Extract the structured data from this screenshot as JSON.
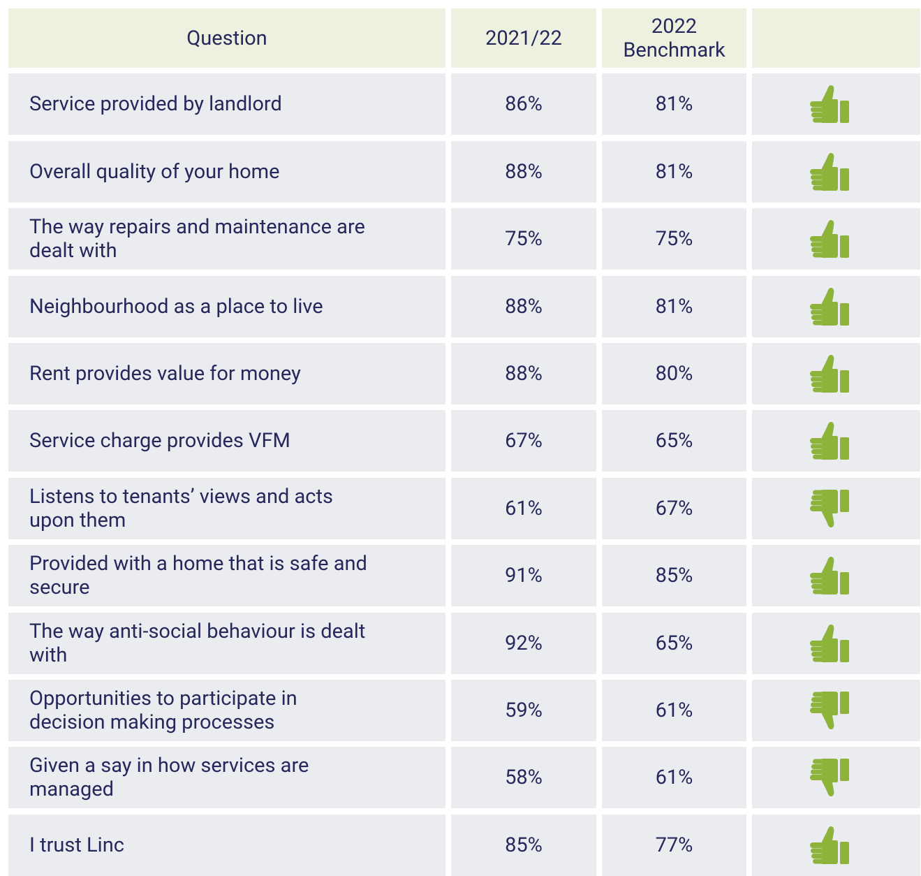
{
  "table": {
    "header": [
      "Question",
      "2021/22",
      "2022 Benchmark"
    ],
    "rows": [
      {
        "question": "Service provided by landlord",
        "result": "86%",
        "benchmark": "81%",
        "thumb": "up"
      },
      {
        "question": "Overall quality of your home",
        "result": "88%",
        "benchmark": "81%",
        "thumb": "up"
      },
      {
        "question": "The way repairs and maintenance are dealt with",
        "result": "75%",
        "benchmark": "75%",
        "thumb": "up"
      },
      {
        "question": "Neighbourhood as a place to live",
        "result": "88%",
        "benchmark": "81%",
        "thumb": "up"
      },
      {
        "question": "Rent provides value for money",
        "result": "88%",
        "benchmark": "80%",
        "thumb": "up"
      },
      {
        "question": "Service charge provides VFM",
        "result": "67%",
        "benchmark": "65%",
        "thumb": "up"
      },
      {
        "question": "Listens to tenants’ views and acts upon them",
        "result": "61%",
        "benchmark": "67%",
        "thumb": "down"
      },
      {
        "question": "Provided with a home that is safe and secure",
        "result": "91%",
        "benchmark": "85%",
        "thumb": "up"
      },
      {
        "question": "The way anti-social behaviour is dealt with",
        "result": "92%",
        "benchmark": "65%",
        "thumb": "up"
      },
      {
        "question": "Opportunities to participate in decision making processes",
        "result": "59%",
        "benchmark": "61%",
        "thumb": "down"
      },
      {
        "question": "Given a say in how services are managed",
        "result": "58%",
        "benchmark": "61%",
        "thumb": "down"
      },
      {
        "question": "I trust Linc",
        "result": "85%",
        "benchmark": "77%",
        "thumb": "up"
      }
    ],
    "icon_color": "#8db33a"
  }
}
